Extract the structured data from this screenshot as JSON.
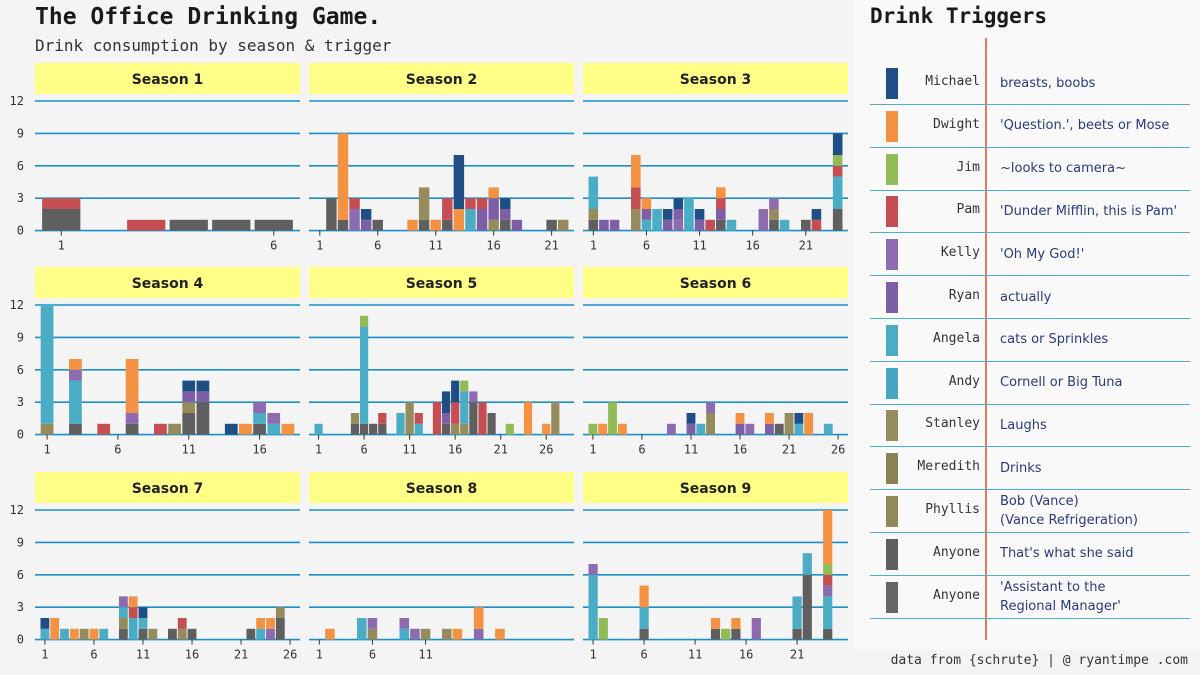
{
  "title": "The Office Drinking Game.",
  "subtitle": "Drink consumption by season & trigger",
  "legend": {
    "title": "Drink Triggers",
    "items": [
      {
        "name": "Michael",
        "trigger": "breasts, boobs",
        "color": "#1f4e86"
      },
      {
        "name": "Dwight",
        "trigger": "'Question.', beets or Mose",
        "color": "#f39243"
      },
      {
        "name": "Jim",
        "trigger": "~looks to camera~",
        "color": "#92bb58"
      },
      {
        "name": "Pam",
        "trigger": "'Dunder Mifflin, this is Pam'",
        "color": "#c44e52"
      },
      {
        "name": "Kelly",
        "trigger": "'Oh My God!'",
        "color": "#8c6bb1"
      },
      {
        "name": "Ryan",
        "trigger": "actually",
        "color": "#7d5fa6"
      },
      {
        "name": "Angela",
        "trigger": "cats or Sprinkles",
        "color": "#4bacc6"
      },
      {
        "name": "Andy",
        "trigger": "Cornell or Big Tuna",
        "color": "#45a5c3"
      },
      {
        "name": "Stanley",
        "trigger": "Laughs",
        "color": "#958b5c"
      },
      {
        "name": "Meredith",
        "trigger": "Drinks",
        "color": "#8b8156"
      },
      {
        "name": "Phyllis",
        "trigger": "Bob (Vance)\n(Vance Refrigeration)",
        "color": "#8f8a58"
      },
      {
        "name": "Anyone",
        "trigger": "That's what she said",
        "color": "#5f5f5f"
      },
      {
        "name": "Anyone",
        "trigger": "'Assistant to the\nRegional Manager'",
        "color": "#666666"
      }
    ]
  },
  "caption": "data from {schrute} | @ ryantimpe .com",
  "chart_data": {
    "type": "bar",
    "stacked": true,
    "facet_label_color": "#ffff88",
    "gridline_color": "#1a8fc9",
    "y_ticks": [
      0,
      3,
      6,
      9,
      12
    ],
    "ylim": [
      0,
      12
    ],
    "series_colors": {
      "Michael": "#1f4e86",
      "Dwight": "#f39243",
      "Jim": "#92bb58",
      "Pam": "#c44e52",
      "Kelly": "#8c6bb1",
      "Ryan": "#7d5fa6",
      "Angela": "#4bacc6",
      "Andy": "#45a5c3",
      "Stanley": "#958b5c",
      "Meredith": "#8b8156",
      "Phyllis": "#8f8a58",
      "Anyone": "#5f5f5f",
      "Anyone (ATRM)": "#666666"
    },
    "facets": [
      {
        "label": "Season 1",
        "episodes": 6,
        "x_ticks": [
          1,
          6
        ],
        "data": {
          "1": {
            "Anyone": 2,
            "Pam": 1
          },
          "3": {
            "Pam": 1
          },
          "4": {
            "Anyone": 1
          },
          "5": {
            "Anyone": 1
          },
          "6": {
            "Anyone": 1
          }
        }
      },
      {
        "label": "Season 2",
        "episodes": 22,
        "x_ticks": [
          1,
          6,
          11,
          16,
          21
        ],
        "data": {
          "2": {
            "Anyone": 3
          },
          "3": {
            "Anyone": 1,
            "Dwight": 8
          },
          "4": {
            "Kelly": 2,
            "Pam": 1
          },
          "5": {
            "Ryan": 1,
            "Michael": 1
          },
          "6": {
            "Anyone": 1
          },
          "9": {
            "Dwight": 1
          },
          "10": {
            "Anyone": 1,
            "Stanley": 3
          },
          "11": {
            "Dwight": 1
          },
          "12": {
            "Anyone": 1,
            "Pam": 2
          },
          "13": {
            "Dwight": 2,
            "Michael": 5
          },
          "14": {
            "Angela": 2,
            "Pam": 1
          },
          "15": {
            "Ryan": 2,
            "Pam": 1
          },
          "16": {
            "Stanley": 1,
            "Ryan": 2,
            "Dwight": 1
          },
          "17": {
            "Anyone": 1,
            "Ryan": 1,
            "Michael": 1
          },
          "18": {
            "Ryan": 1
          },
          "21": {
            "Anyone": 1
          },
          "22": {
            "Stanley": 1
          }
        }
      },
      {
        "label": "Season 3",
        "episodes": 24,
        "x_ticks": [
          1,
          6,
          11,
          16,
          21
        ],
        "data": {
          "1": {
            "Anyone": 1,
            "Stanley": 1,
            "Angela": 3
          },
          "2": {
            "Ryan": 1
          },
          "3": {
            "Ryan": 1
          },
          "5": {
            "Stanley": 2,
            "Pam": 2,
            "Dwight": 3
          },
          "6": {
            "Angela": 1,
            "Dwight": 1,
            "Ryan": 1
          },
          "7": {
            "Angela": 2
          },
          "8": {
            "Ryan": 1,
            "Michael": 1
          },
          "9": {
            "Ryan": 1,
            "Kelly": 1,
            "Michael": 1
          },
          "10": {
            "Angela": 3
          },
          "11": {
            "Ryan": 1,
            "Michael": 1
          },
          "12": {
            "Pam": 1
          },
          "13": {
            "Anyone": 1,
            "Ryan": 1,
            "Pam": 1,
            "Dwight": 1
          },
          "14": {
            "Angela": 1
          },
          "17": {
            "Kelly": 2
          },
          "18": {
            "Anyone": 1,
            "Stanley": 1,
            "Kelly": 1
          },
          "19": {
            "Angela": 1
          },
          "21": {
            "Anyone": 1
          },
          "22": {
            "Pam": 1,
            "Michael": 1
          },
          "24": {
            "Anyone": 2,
            "Angela": 3,
            "Pam": 1,
            "Jim": 1,
            "Michael": 2
          }
        }
      },
      {
        "label": "Season 4",
        "episodes": 18,
        "x_ticks": [
          1,
          6,
          11,
          16
        ],
        "data": {
          "1": {
            "Stanley": 1,
            "Angela": 11
          },
          "3": {
            "Anyone": 1,
            "Angela": 4,
            "Kelly": 1,
            "Dwight": 1
          },
          "5": {
            "Pam": 1
          },
          "7": {
            "Anyone": 1,
            "Kelly": 1,
            "Dwight": 5
          },
          "9": {
            "Pam": 1
          },
          "10": {
            "Stanley": 1
          },
          "11": {
            "Anyone": 2,
            "Stanley": 1,
            "Ryan": 1,
            "Michael": 1
          },
          "12": {
            "Anyone": 3,
            "Ryan": 1,
            "Michael": 1
          },
          "14": {
            "Michael": 1
          },
          "15": {
            "Dwight": 1
          },
          "16": {
            "Anyone": 1,
            "Angela": 1,
            "Kelly": 1
          },
          "17": {
            "Angela": 1,
            "Kelly": 1
          },
          "18": {
            "Dwight": 1
          }
        }
      },
      {
        "label": "Season 5",
        "episodes": 28,
        "x_ticks": [
          1,
          6,
          11,
          16,
          21,
          26
        ],
        "data": {
          "1": {
            "Angela": 1
          },
          "5": {
            "Anyone": 1,
            "Stanley": 1
          },
          "6": {
            "Anyone": 1,
            "Angela": 9,
            "Jim": 1
          },
          "7": {
            "Anyone": 1
          },
          "8": {
            "Anyone": 1,
            "Pam": 1
          },
          "10": {
            "Angela": 2
          },
          "11": {
            "Stanley": 3
          },
          "12": {
            "Angela": 1,
            "Pam": 1
          },
          "14": {
            "Pam": 3
          },
          "15": {
            "Anyone": 1,
            "Ryan": 1,
            "Michael": 2
          },
          "16": {
            "Stanley": 1,
            "Pam": 2,
            "Michael": 2
          },
          "17": {
            "Stanley": 1,
            "Angela": 3,
            "Jim": 1
          },
          "18": {
            "Anyone": 3,
            "Kelly": 1
          },
          "19": {
            "Pam": 3
          },
          "20": {
            "Anyone": 2
          },
          "22": {
            "Jim": 1
          },
          "24": {
            "Dwight": 3
          },
          "26": {
            "Dwight": 1
          },
          "27": {
            "Stanley": 3
          }
        }
      },
      {
        "label": "Season 6",
        "episodes": 26,
        "x_ticks": [
          1,
          6,
          11,
          16,
          21,
          26
        ],
        "data": {
          "1": {
            "Jim": 1
          },
          "2": {
            "Dwight": 1
          },
          "3": {
            "Jim": 3
          },
          "4": {
            "Dwight": 1
          },
          "9": {
            "Kelly": 1
          },
          "11": {
            "Ryan": 1,
            "Michael": 1
          },
          "12": {
            "Angela": 1
          },
          "13": {
            "Stanley": 2,
            "Kelly": 1
          },
          "16": {
            "Ryan": 1,
            "Dwight": 1
          },
          "17": {
            "Kelly": 1
          },
          "19": {
            "Ryan": 1,
            "Dwight": 1
          },
          "20": {
            "Anyone": 1
          },
          "21": {
            "Stanley": 2
          },
          "22": {
            "Angela": 1,
            "Michael": 1
          },
          "23": {
            "Dwight": 2
          },
          "25": {
            "Angela": 1
          }
        }
      },
      {
        "label": "Season 7",
        "episodes": 26,
        "x_ticks": [
          1,
          6,
          11,
          16,
          21,
          26
        ],
        "data": {
          "1": {
            "Angela": 1,
            "Michael": 1
          },
          "2": {
            "Dwight": 2
          },
          "3": {
            "Angela": 1
          },
          "4": {
            "Dwight": 1
          },
          "5": {
            "Stanley": 1
          },
          "6": {
            "Dwight": 1
          },
          "7": {
            "Angela": 1
          },
          "9": {
            "Anyone": 1,
            "Stanley": 1,
            "Angela": 1,
            "Kelly": 1
          },
          "10": {
            "Angela": 2,
            "Dwight": 1,
            "Pam": 1
          },
          "11": {
            "Anyone": 1,
            "Angela": 1,
            "Michael": 1
          },
          "12": {
            "Stanley": 1
          },
          "14": {
            "Anyone": 1
          },
          "15": {
            "Stanley": 1,
            "Pam": 1
          },
          "16": {
            "Anyone": 1
          },
          "22": {
            "Anyone": 1
          },
          "23": {
            "Angela": 1,
            "Dwight": 1
          },
          "24": {
            "Dwight": 1,
            "Kelly": 1
          },
          "25": {
            "Anyone": 2,
            "Stanley": 1
          }
        }
      },
      {
        "label": "Season 8",
        "episodes": 24,
        "x_ticks": [
          1,
          6,
          11
        ],
        "data": {
          "2": {
            "Dwight": 1
          },
          "5": {
            "Angela": 2
          },
          "6": {
            "Stanley": 1,
            "Kelly": 1
          },
          "9": {
            "Angela": 1,
            "Kelly": 1
          },
          "10": {
            "Kelly": 1
          },
          "11": {
            "Stanley": 1
          },
          "13": {
            "Stanley": 1
          },
          "14": {
            "Dwight": 1
          },
          "16": {
            "Kelly": 1,
            "Dwight": 2
          },
          "18": {
            "Dwight": 1
          }
        }
      },
      {
        "label": "Season 9",
        "episodes": 25,
        "x_ticks": [
          1,
          6,
          11,
          16,
          21
        ],
        "data": {
          "1": {
            "Angela": 6,
            "Kelly": 1
          },
          "2": {
            "Jim": 2
          },
          "6": {
            "Anyone": 1,
            "Angela": 2,
            "Dwight": 2
          },
          "13": {
            "Anyone": 1,
            "Dwight": 1
          },
          "14": {
            "Jim": 1
          },
          "15": {
            "Anyone": 1,
            "Dwight": 1
          },
          "17": {
            "Kelly": 2
          },
          "21": {
            "Anyone": 1,
            "Angela": 3
          },
          "22": {
            "Anyone": 6,
            "Angela": 2
          },
          "24": {
            "Anyone": 1,
            "Angela": 3,
            "Kelly": 1,
            "Pam": 1,
            "Jim": 1,
            "Dwight": 5
          }
        }
      }
    ]
  }
}
